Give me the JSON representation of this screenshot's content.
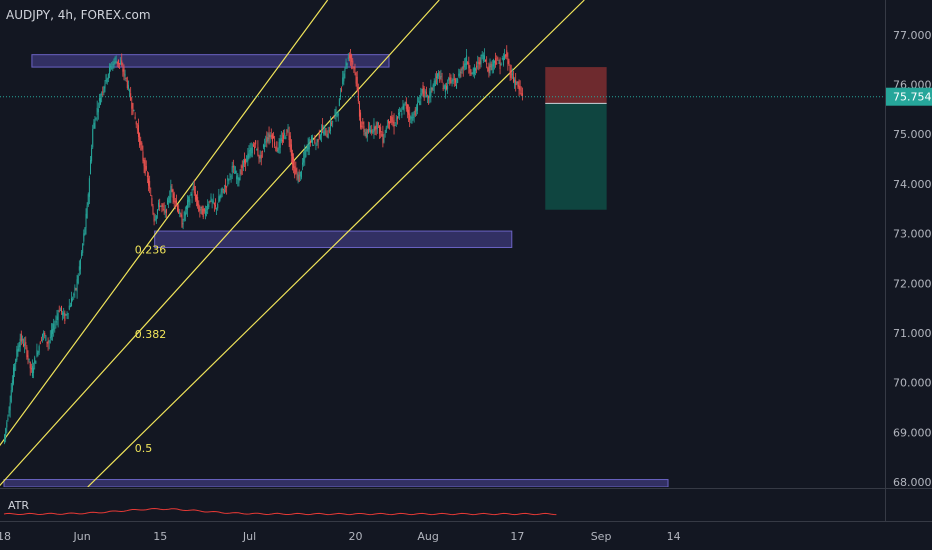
{
  "chart_data": {
    "type": "candlestick",
    "title": "AUDJPY, 4h, FOREX.com",
    "symbol": "AUDJPY",
    "timeframe": "4h",
    "source": "FOREX.com",
    "ylim": [
      67.9,
      77.7
    ],
    "y_ticks": [
      "77.000",
      "76.000",
      "75.000",
      "74.000",
      "73.000",
      "72.000",
      "71.000",
      "70.000",
      "69.000",
      "68.000"
    ],
    "y_tick_values": [
      77,
      76,
      75,
      74,
      73,
      72,
      71,
      70,
      69,
      68
    ],
    "x_ticks": [
      {
        "label": "18",
        "day": 0
      },
      {
        "label": "Jun",
        "day": 14
      },
      {
        "label": "15",
        "day": 28
      },
      {
        "label": "Jul",
        "day": 44
      },
      {
        "label": "20",
        "day": 63
      },
      {
        "label": "Aug",
        "day": 76
      },
      {
        "label": "17",
        "day": 92
      },
      {
        "label": "Sep",
        "day": 107
      },
      {
        "label": "14",
        "day": 120
      }
    ],
    "x_range_days": [
      0,
      145
    ],
    "last_price": "75.754",
    "last_price_value": 75.754,
    "series_points": [
      [
        0,
        68.8
      ],
      [
        1,
        69.5
      ],
      [
        2,
        70.4
      ],
      [
        3,
        70.9
      ],
      [
        4,
        70.7
      ],
      [
        5,
        70.2
      ],
      [
        6,
        70.6
      ],
      [
        7,
        71.0
      ],
      [
        8,
        70.8
      ],
      [
        9,
        71.1
      ],
      [
        10,
        71.5
      ],
      [
        11,
        71.3
      ],
      [
        12,
        71.6
      ],
      [
        13,
        71.9
      ],
      [
        14,
        72.6
      ],
      [
        15,
        73.5
      ],
      [
        16,
        75.1
      ],
      [
        17,
        75.6
      ],
      [
        18,
        76.0
      ],
      [
        19,
        76.3
      ],
      [
        20,
        76.5
      ],
      [
        21,
        76.4
      ],
      [
        22,
        76.1
      ],
      [
        23,
        75.6
      ],
      [
        24,
        75.1
      ],
      [
        25,
        74.5
      ],
      [
        26,
        74.0
      ],
      [
        27,
        73.3
      ],
      [
        28,
        73.6
      ],
      [
        29,
        73.4
      ],
      [
        30,
        73.9
      ],
      [
        31,
        73.6
      ],
      [
        32,
        73.2
      ],
      [
        33,
        73.6
      ],
      [
        34,
        73.9
      ],
      [
        35,
        73.5
      ],
      [
        36,
        73.4
      ],
      [
        37,
        73.7
      ],
      [
        38,
        73.5
      ],
      [
        39,
        73.8
      ],
      [
        40,
        74.0
      ],
      [
        41,
        74.3
      ],
      [
        42,
        74.1
      ],
      [
        43,
        74.4
      ],
      [
        44,
        74.6
      ],
      [
        45,
        74.8
      ],
      [
        46,
        74.5
      ],
      [
        47,
        74.9
      ],
      [
        48,
        75.0
      ],
      [
        49,
        74.7
      ],
      [
        50,
        74.9
      ],
      [
        51,
        75.1
      ],
      [
        52,
        74.3
      ],
      [
        53,
        74.1
      ],
      [
        54,
        74.6
      ],
      [
        55,
        74.9
      ],
      [
        56,
        74.8
      ],
      [
        57,
        75.1
      ],
      [
        58,
        75.0
      ],
      [
        59,
        75.3
      ],
      [
        60,
        75.5
      ],
      [
        61,
        76.3
      ],
      [
        62,
        76.6
      ],
      [
        63,
        76.3
      ],
      [
        64,
        75.2
      ],
      [
        65,
        75.0
      ],
      [
        66,
        75.1
      ],
      [
        67,
        75.2
      ],
      [
        68,
        74.9
      ],
      [
        69,
        75.3
      ],
      [
        70,
        75.2
      ],
      [
        71,
        75.4
      ],
      [
        72,
        75.6
      ],
      [
        73,
        75.3
      ],
      [
        74,
        75.5
      ],
      [
        75,
        75.9
      ],
      [
        76,
        75.7
      ],
      [
        77,
        76.0
      ],
      [
        78,
        76.2
      ],
      [
        79,
        75.9
      ],
      [
        80,
        76.1
      ],
      [
        81,
        76.0
      ],
      [
        82,
        76.3
      ],
      [
        83,
        76.5
      ],
      [
        84,
        76.2
      ],
      [
        85,
        76.4
      ],
      [
        86,
        76.6
      ],
      [
        87,
        76.3
      ],
      [
        88,
        76.5
      ],
      [
        89,
        76.4
      ],
      [
        90,
        76.6
      ],
      [
        91,
        76.2
      ],
      [
        92,
        76.0
      ],
      [
        93,
        75.75
      ]
    ],
    "zones": [
      {
        "from_day": 5,
        "to_day": 69,
        "low": 76.35,
        "high": 76.6
      },
      {
        "from_day": 27,
        "to_day": 91,
        "low": 72.72,
        "high": 73.05
      },
      {
        "from_day": 0,
        "to_day": 119,
        "low": 67.9,
        "high": 68.05
      }
    ],
    "trendlines": [
      {
        "p1": [
          -1,
          67.9
        ],
        "p2": [
          78,
          77.7
        ]
      },
      {
        "p1": [
          -1,
          68.7
        ],
        "p2": [
          58,
          77.7
        ]
      },
      {
        "p1": [
          15,
          67.9
        ],
        "p2": [
          104,
          77.7
        ]
      }
    ],
    "fib_labels": [
      {
        "label": "0.236",
        "day": 22,
        "value": 72.6
      },
      {
        "label": "0.382",
        "day": 22,
        "value": 70.9
      },
      {
        "label": "0.5",
        "day": 22,
        "value": 68.6
      }
    ],
    "position": {
      "from_day": 97,
      "to_day": 108,
      "stop": 76.35,
      "entry": 75.62,
      "target": 73.48
    },
    "indicator": {
      "name": "ATR"
    },
    "colors": {
      "background": "#131722",
      "up": "#26a69a",
      "down": "#ef5350",
      "zone_fill": "#3e3a7a",
      "zone_stroke": "#6b63c4",
      "trendline": "#f0e45a",
      "stop_fill": "#6e2a2e",
      "target_fill": "#0f4540",
      "price_line": "#26a69a",
      "atr_line": "#e53935"
    },
    "grid": false
  }
}
